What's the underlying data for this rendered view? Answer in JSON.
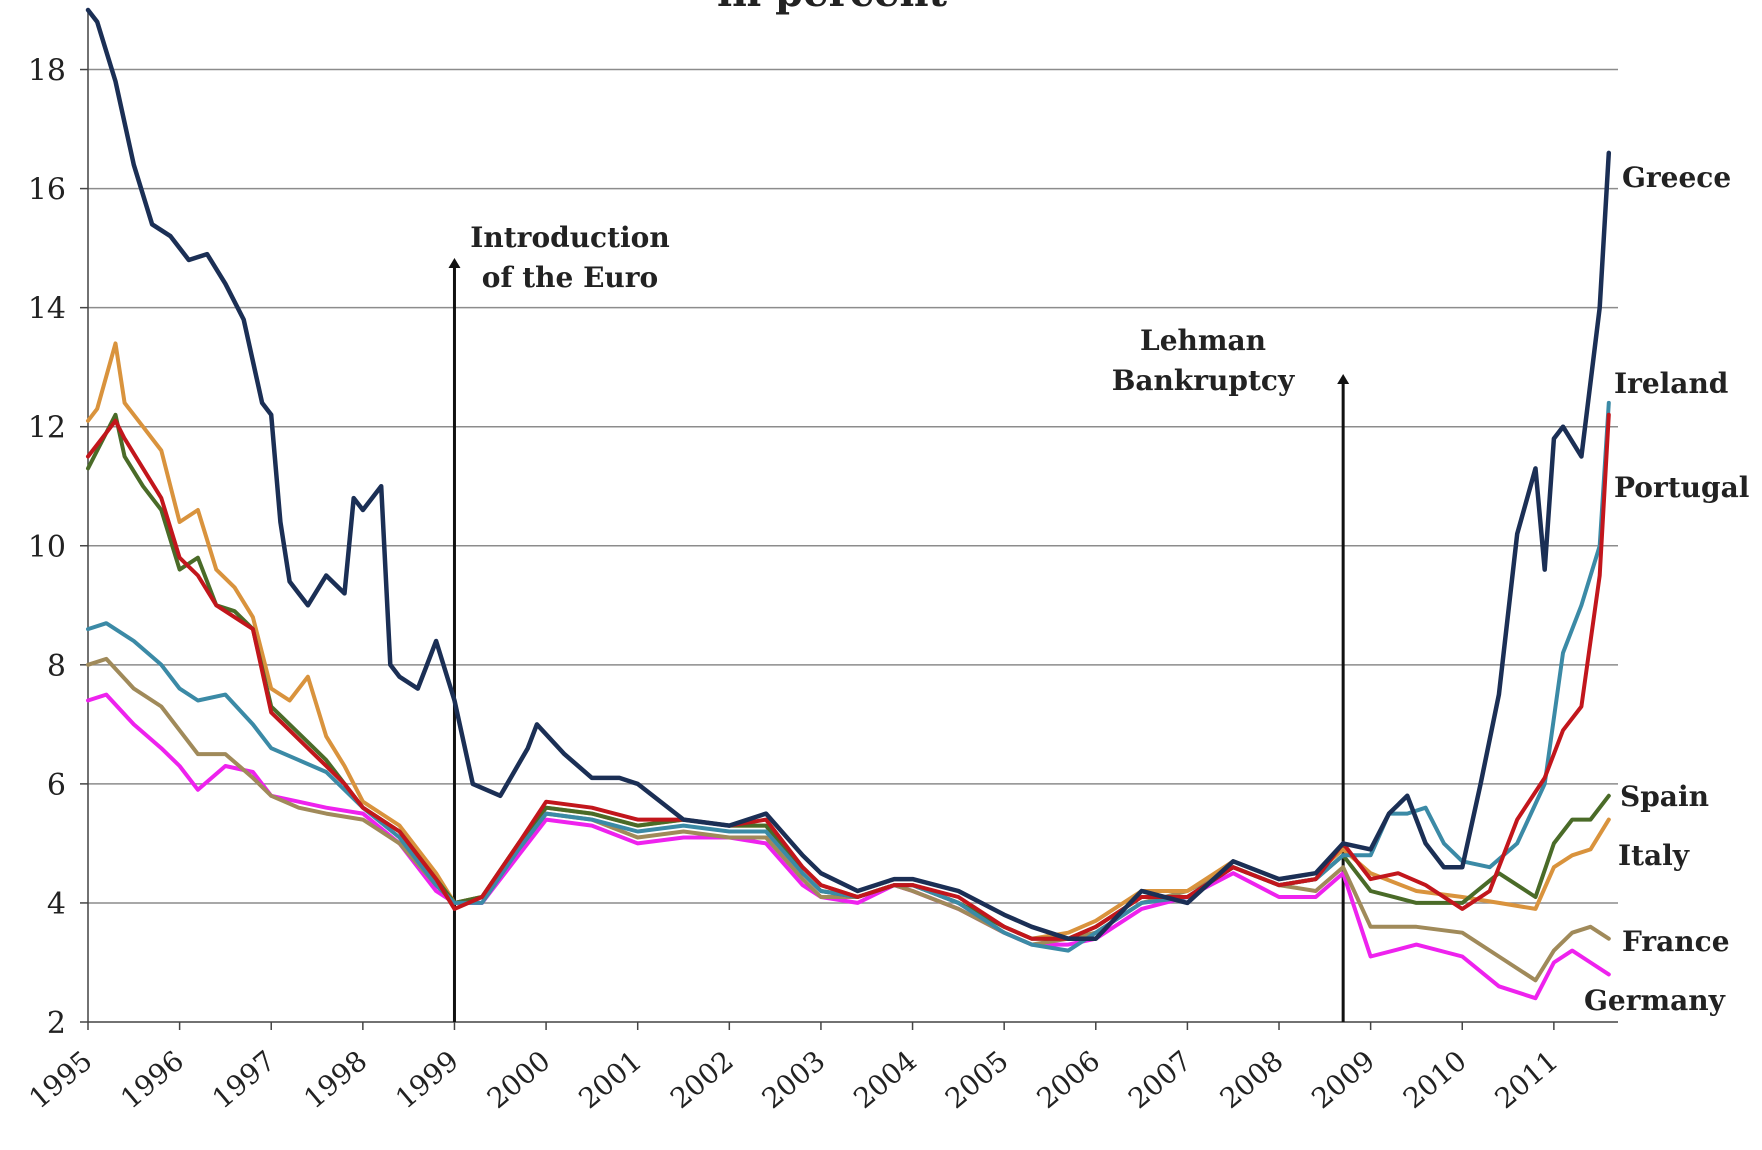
{
  "chart_data": {
    "type": "line",
    "title": "in percent",
    "xlabel": "",
    "ylabel": "",
    "xlim": [
      1995.0,
      2011.7
    ],
    "ylim": [
      2,
      19
    ],
    "y_ticks": [
      2,
      4,
      6,
      8,
      10,
      12,
      14,
      16,
      18
    ],
    "x_ticks": [
      "1995",
      "1996",
      "1997",
      "1998",
      "1999",
      "2000",
      "2001",
      "2002",
      "2003",
      "2004",
      "2005",
      "2006",
      "2007",
      "2008",
      "2009",
      "2010",
      "2011"
    ],
    "grid": true,
    "legend": "labels at line ends (right)",
    "annotations": [
      {
        "text": "Introduction of the Euro",
        "lines": [
          "Introduction",
          "of the Euro"
        ],
        "x": 1999.0
      },
      {
        "text": "Lehman Bankruptcy",
        "lines": [
          "Lehman",
          "Bankruptcy"
        ],
        "x": 2008.7
      }
    ],
    "series": [
      {
        "name": "Germany",
        "color": "#ee22ee",
        "x": [
          1995,
          1995.2,
          1995.5,
          1995.8,
          1996,
          1996.2,
          1996.5,
          1996.8,
          1997,
          1997.3,
          1997.6,
          1998,
          1998.4,
          1998.8,
          1999,
          1999.3,
          1999.7,
          2000,
          2000.5,
          2001,
          2001.5,
          2002,
          2002.4,
          2002.8,
          2003,
          2003.4,
          2003.8,
          2004,
          2004.5,
          2005,
          2005.3,
          2005.7,
          2006,
          2006.5,
          2007,
          2007.5,
          2008,
          2008.4,
          2008.7,
          2009,
          2009.5,
          2010,
          2010.4,
          2010.8,
          2011,
          2011.2,
          2011.4,
          2011.6
        ],
        "y": [
          7.4,
          7.5,
          7.0,
          6.6,
          6.3,
          5.9,
          6.3,
          6.2,
          5.8,
          5.7,
          5.6,
          5.5,
          5.0,
          4.2,
          4.0,
          4.0,
          4.8,
          5.4,
          5.3,
          5.0,
          5.1,
          5.1,
          5.0,
          4.3,
          4.1,
          4.0,
          4.3,
          4.2,
          3.9,
          3.5,
          3.3,
          3.3,
          3.4,
          3.9,
          4.1,
          4.5,
          4.1,
          4.1,
          4.5,
          3.1,
          3.3,
          3.1,
          2.6,
          2.4,
          3.0,
          3.2,
          3.0,
          2.8
        ]
      },
      {
        "name": "France",
        "color": "#a08a5a",
        "x": [
          1995,
          1995.2,
          1995.5,
          1995.8,
          1996,
          1996.2,
          1996.5,
          1996.8,
          1997,
          1997.3,
          1997.6,
          1998,
          1998.4,
          1998.8,
          1999,
          1999.3,
          1999.7,
          2000,
          2000.5,
          2001,
          2001.5,
          2002,
          2002.4,
          2002.8,
          2003,
          2003.4,
          2003.8,
          2004,
          2004.5,
          2005,
          2005.3,
          2005.7,
          2006,
          2006.5,
          2007,
          2007.5,
          2008,
          2008.4,
          2008.7,
          2009,
          2009.5,
          2010,
          2010.4,
          2010.8,
          2011,
          2011.2,
          2011.4,
          2011.6
        ],
        "y": [
          8.0,
          8.1,
          7.6,
          7.3,
          6.9,
          6.5,
          6.5,
          6.1,
          5.8,
          5.6,
          5.5,
          5.4,
          5.0,
          4.3,
          4.0,
          4.1,
          4.9,
          5.5,
          5.4,
          5.1,
          5.2,
          5.1,
          5.1,
          4.4,
          4.1,
          4.1,
          4.3,
          4.2,
          3.9,
          3.5,
          3.3,
          3.4,
          3.5,
          4.0,
          4.2,
          4.6,
          4.3,
          4.2,
          4.6,
          3.6,
          3.6,
          3.5,
          3.1,
          2.7,
          3.2,
          3.5,
          3.6,
          3.4
        ]
      },
      {
        "name": "Italy",
        "color": "#d9933d",
        "x": [
          1995,
          1995.1,
          1995.3,
          1995.4,
          1995.6,
          1995.8,
          1996,
          1996.2,
          1996.4,
          1996.6,
          1996.8,
          1997,
          1997.2,
          1997.4,
          1997.6,
          1997.8,
          1998,
          1998.4,
          1998.8,
          1999,
          1999.3,
          1999.7,
          2000,
          2000.5,
          2001,
          2001.5,
          2002,
          2002.4,
          2002.8,
          2003,
          2003.4,
          2003.8,
          2004,
          2004.5,
          2005,
          2005.3,
          2005.7,
          2006,
          2006.5,
          2007,
          2007.5,
          2008,
          2008.4,
          2008.7,
          2009,
          2009.5,
          2010,
          2010.4,
          2010.8,
          2011,
          2011.2,
          2011.4,
          2011.6
        ],
        "y": [
          12.1,
          12.3,
          13.4,
          12.4,
          12.0,
          11.6,
          10.4,
          10.6,
          9.6,
          9.3,
          8.8,
          7.6,
          7.4,
          7.8,
          6.8,
          6.3,
          5.7,
          5.3,
          4.5,
          4.0,
          4.1,
          5.0,
          5.6,
          5.5,
          5.3,
          5.4,
          5.3,
          5.3,
          4.6,
          4.3,
          4.1,
          4.3,
          4.3,
          4.0,
          3.6,
          3.4,
          3.5,
          3.7,
          4.2,
          4.2,
          4.7,
          4.4,
          4.5,
          4.9,
          4.5,
          4.2,
          4.1,
          4.0,
          3.9,
          4.6,
          4.8,
          4.9,
          5.4
        ]
      },
      {
        "name": "Spain",
        "color": "#4a6b28",
        "x": [
          1995,
          1995.1,
          1995.3,
          1995.4,
          1995.6,
          1995.8,
          1996,
          1996.2,
          1996.4,
          1996.6,
          1996.8,
          1997,
          1997.2,
          1997.4,
          1997.6,
          1997.8,
          1998,
          1998.4,
          1998.8,
          1999,
          1999.3,
          1999.7,
          2000,
          2000.5,
          2001,
          2001.5,
          2002,
          2002.4,
          2002.8,
          2003,
          2003.4,
          2003.8,
          2004,
          2004.5,
          2005,
          2005.3,
          2005.7,
          2006,
          2006.5,
          2007,
          2007.5,
          2008,
          2008.4,
          2008.7,
          2009,
          2009.5,
          2010,
          2010.4,
          2010.8,
          2011,
          2011.2,
          2011.4,
          2011.6
        ],
        "y": [
          11.3,
          11.6,
          12.2,
          11.5,
          11.0,
          10.6,
          9.6,
          9.8,
          9.0,
          8.9,
          8.6,
          7.3,
          7.0,
          6.7,
          6.4,
          6.0,
          5.6,
          5.2,
          4.4,
          4.0,
          4.1,
          5.0,
          5.6,
          5.5,
          5.3,
          5.4,
          5.3,
          5.3,
          4.5,
          4.2,
          4.1,
          4.3,
          4.3,
          4.0,
          3.6,
          3.4,
          3.4,
          3.6,
          4.1,
          4.1,
          4.6,
          4.3,
          4.4,
          4.8,
          4.2,
          4.0,
          4.0,
          4.5,
          4.1,
          5.0,
          5.4,
          5.4,
          5.8
        ]
      },
      {
        "name": "Ireland",
        "color": "#3b8aa6",
        "x": [
          1995,
          1995.2,
          1995.5,
          1995.8,
          1996,
          1996.2,
          1996.5,
          1996.8,
          1997,
          1997.3,
          1997.6,
          1998,
          1998.4,
          1998.8,
          1999,
          1999.3,
          1999.7,
          2000,
          2000.5,
          2001,
          2001.5,
          2002,
          2002.4,
          2002.8,
          2003,
          2003.4,
          2003.8,
          2004,
          2004.5,
          2005,
          2005.3,
          2005.7,
          2006,
          2006.5,
          2007,
          2007.5,
          2008,
          2008.4,
          2008.7,
          2009,
          2009.2,
          2009.4,
          2009.6,
          2009.8,
          2010,
          2010.3,
          2010.6,
          2010.9,
          2011.1,
          2011.3,
          2011.5,
          2011.6
        ],
        "y": [
          8.6,
          8.7,
          8.4,
          8.0,
          7.6,
          7.4,
          7.5,
          7.0,
          6.6,
          6.4,
          6.2,
          5.6,
          5.1,
          4.3,
          4.0,
          4.0,
          4.9,
          5.5,
          5.4,
          5.2,
          5.3,
          5.2,
          5.2,
          4.5,
          4.2,
          4.1,
          4.3,
          4.3,
          4.0,
          3.5,
          3.3,
          3.2,
          3.5,
          4.0,
          4.1,
          4.6,
          4.3,
          4.4,
          4.8,
          4.8,
          5.5,
          5.5,
          5.6,
          5.0,
          4.7,
          4.6,
          5.0,
          6.0,
          8.2,
          9.0,
          10.0,
          12.4
        ]
      },
      {
        "name": "Portugal",
        "color": "#c2161c",
        "x": [
          1995,
          1995.1,
          1995.3,
          1995.4,
          1995.6,
          1995.8,
          1996,
          1996.2,
          1996.4,
          1996.6,
          1996.8,
          1997,
          1997.2,
          1997.4,
          1997.6,
          1997.8,
          1998,
          1998.4,
          1998.8,
          1999,
          1999.3,
          1999.7,
          2000,
          2000.5,
          2001,
          2001.5,
          2002,
          2002.4,
          2002.8,
          2003,
          2003.4,
          2003.8,
          2004,
          2004.5,
          2005,
          2005.3,
          2005.7,
          2006,
          2006.5,
          2007,
          2007.5,
          2008,
          2008.4,
          2008.7,
          2009,
          2009.3,
          2009.6,
          2010,
          2010.3,
          2010.6,
          2010.9,
          2011.1,
          2011.3,
          2011.5,
          2011.6
        ],
        "y": [
          11.5,
          11.7,
          12.1,
          11.8,
          11.3,
          10.8,
          9.8,
          9.5,
          9.0,
          8.8,
          8.6,
          7.2,
          6.9,
          6.6,
          6.3,
          6.0,
          5.6,
          5.2,
          4.4,
          3.9,
          4.1,
          5.0,
          5.7,
          5.6,
          5.4,
          5.4,
          5.3,
          5.4,
          4.6,
          4.3,
          4.1,
          4.3,
          4.3,
          4.1,
          3.6,
          3.4,
          3.4,
          3.6,
          4.1,
          4.1,
          4.6,
          4.3,
          4.4,
          5.0,
          4.4,
          4.5,
          4.3,
          3.9,
          4.2,
          5.4,
          6.1,
          6.9,
          7.3,
          9.5,
          12.2
        ]
      },
      {
        "name": "Greece",
        "color": "#1b2f55",
        "x": [
          1995,
          1995.1,
          1995.3,
          1995.5,
          1995.7,
          1995.9,
          1996.1,
          1996.3,
          1996.5,
          1996.7,
          1996.9,
          1997.0,
          1997.1,
          1997.2,
          1997.3,
          1997.4,
          1997.6,
          1997.8,
          1997.9,
          1998.0,
          1998.2,
          1998.3,
          1998.4,
          1998.6,
          1998.7,
          1998.8,
          1999.0,
          1999.2,
          1999.5,
          1999.8,
          1999.9,
          2000.2,
          2000.5,
          2000.8,
          2001.0,
          2001.5,
          2002.0,
          2002.4,
          2002.8,
          2003.0,
          2003.4,
          2003.8,
          2004.0,
          2004.5,
          2005.0,
          2005.3,
          2005.7,
          2006.0,
          2006.5,
          2007.0,
          2007.5,
          2008.0,
          2008.4,
          2008.7,
          2009.0,
          2009.2,
          2009.4,
          2009.6,
          2009.8,
          2010.0,
          2010.2,
          2010.4,
          2010.6,
          2010.8,
          2010.9,
          2011.0,
          2011.1,
          2011.3,
          2011.5,
          2011.6
        ],
        "y": [
          19.0,
          18.8,
          17.8,
          16.4,
          15.4,
          15.2,
          14.8,
          14.9,
          14.4,
          13.8,
          12.4,
          12.2,
          10.4,
          9.4,
          9.2,
          9.0,
          9.5,
          9.2,
          10.8,
          10.6,
          11.0,
          8.0,
          7.8,
          7.6,
          8.0,
          8.4,
          7.4,
          6.0,
          5.8,
          6.6,
          7.0,
          6.5,
          6.1,
          6.1,
          6.0,
          5.4,
          5.3,
          5.5,
          4.8,
          4.5,
          4.2,
          4.4,
          4.4,
          4.2,
          3.8,
          3.6,
          3.4,
          3.4,
          4.2,
          4.0,
          4.7,
          4.4,
          4.5,
          5.0,
          4.9,
          5.5,
          5.8,
          5.0,
          4.6,
          4.6,
          6.0,
          7.5,
          10.2,
          11.3,
          9.6,
          11.8,
          12.0,
          11.5,
          14.0,
          16.6
        ]
      }
    ]
  }
}
